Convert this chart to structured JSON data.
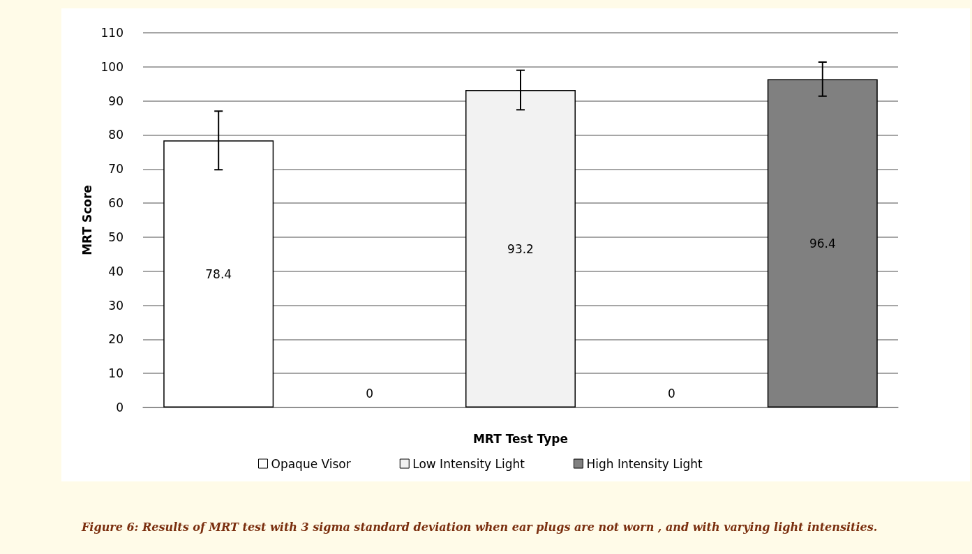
{
  "chart_data": {
    "type": "bar",
    "xlabel": "MRT Test Type",
    "ylabel": "MRT Score",
    "categories": [
      null,
      null,
      null,
      null,
      null
    ],
    "series": [
      {
        "name": "Opaque Visor",
        "color": "#ffffff",
        "values": [
          78.4,
          null,
          null,
          null,
          null
        ],
        "errors": [
          8.6,
          null,
          null,
          null,
          null
        ]
      },
      {
        "name": "Low Intensity Light",
        "color": "#f2f2f2",
        "values": [
          null,
          null,
          93.2,
          null,
          null
        ],
        "errors": [
          null,
          null,
          5.8,
          null,
          null
        ]
      },
      {
        "name": "High Intensity Light",
        "color": "#808080",
        "values": [
          null,
          null,
          null,
          null,
          96.4
        ],
        "errors": [
          null,
          null,
          null,
          null,
          5.0
        ]
      },
      {
        "color": "#ffffff",
        "values": [
          null,
          0,
          null,
          0,
          null
        ]
      }
    ],
    "ylim": [
      0,
      110
    ],
    "yticks": [
      0,
      10,
      20,
      30,
      40,
      50,
      60,
      70,
      80,
      90,
      100,
      110
    ],
    "grid": "y",
    "legend": "bottom",
    "data_labels": true,
    "annotations": [
      "Figure 6: Results of MRT test with 3 sigma standard deviation when ear plugs are not worn , and with varying light intensities."
    ]
  }
}
